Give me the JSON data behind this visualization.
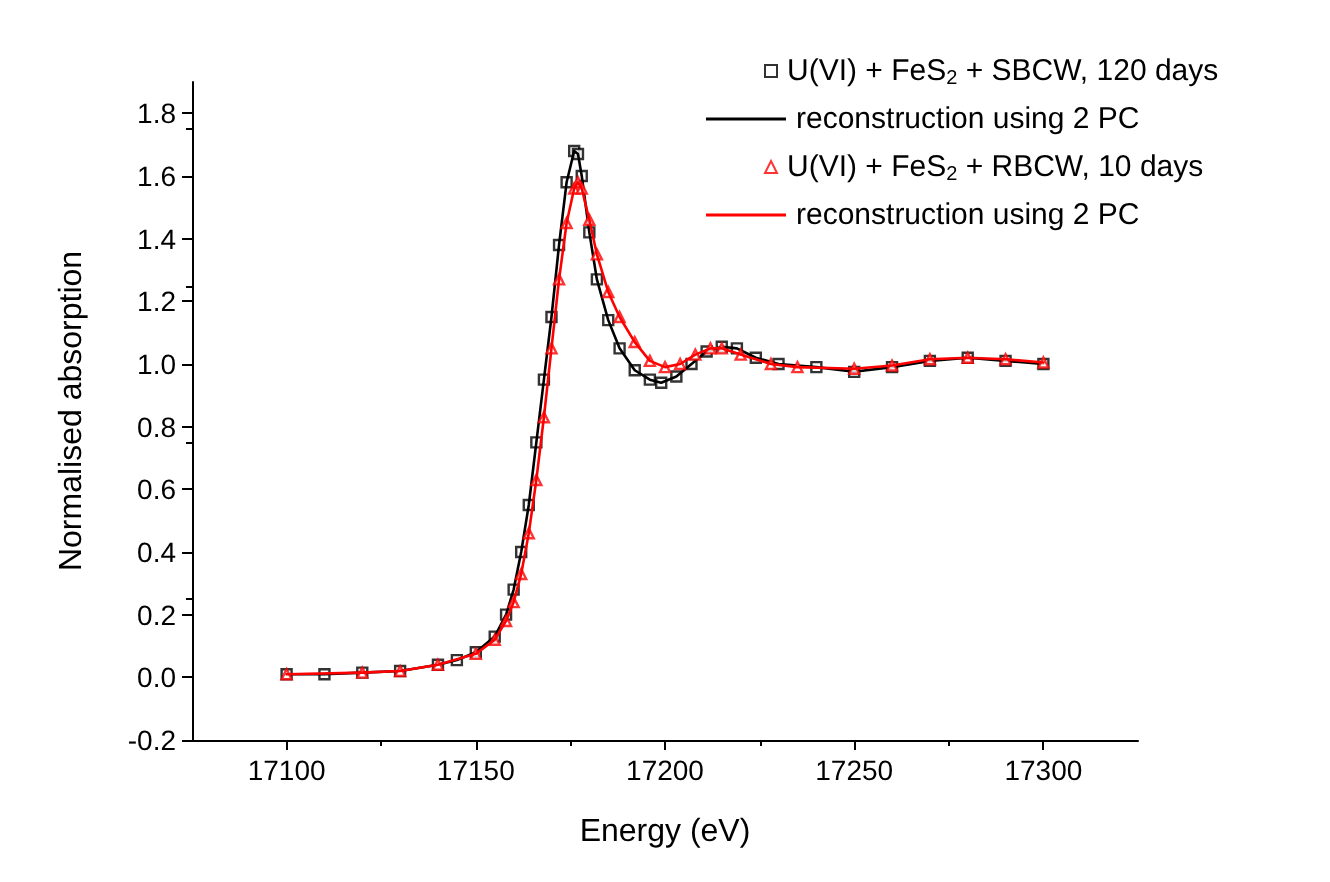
{
  "chart_data": {
    "type": "line",
    "xlabel": "Energy (eV)",
    "ylabel": "Normalised absorption",
    "xlim": [
      17075,
      17325
    ],
    "xticks": [
      17100,
      17150,
      17200,
      17250,
      17300
    ],
    "ylim": [
      -0.2,
      1.9
    ],
    "yticks": [
      {
        "value": -0.2,
        "label": "-0.2"
      },
      {
        "value": 0,
        "label": "0.0"
      },
      {
        "value": 0.2,
        "label": "0.2"
      },
      {
        "value": 0.4,
        "label": "0.4"
      },
      {
        "value": 0.6,
        "label": "0.6"
      },
      {
        "value": 0.8,
        "label": "0.8"
      },
      {
        "value": 1,
        "label": "1.0"
      },
      {
        "value": 1.2,
        "label": "1.2"
      },
      {
        "value": 1.4,
        "label": "1.4"
      },
      {
        "value": 1.6,
        "label": "1.6"
      },
      {
        "value": 1.8,
        "label": "1.8"
      }
    ],
    "grid": false,
    "legend": "top right",
    "series": [
      {
        "name": "U(VI) + FeS$_{2}$ + SBCW, 120 days",
        "type": "scatter",
        "marker": "square",
        "color": "#000000",
        "x": [
          17100,
          17110,
          17120,
          17130,
          17140,
          17145,
          17150,
          17155,
          17158,
          17160,
          17162,
          17164,
          17166,
          17168,
          17170,
          17172,
          17174,
          17176,
          17177,
          17178,
          17180,
          17182,
          17185,
          17188,
          17192,
          17196,
          17199,
          17203,
          17207,
          17211,
          17215,
          17219,
          17224,
          17230,
          17240,
          17250,
          17260,
          17270,
          17280,
          17290,
          17300
        ],
        "values": [
          0.01,
          0.01,
          0.015,
          0.02,
          0.04,
          0.055,
          0.08,
          0.13,
          0.2,
          0.28,
          0.4,
          0.55,
          0.75,
          0.95,
          1.15,
          1.38,
          1.58,
          1.68,
          1.67,
          1.6,
          1.42,
          1.27,
          1.14,
          1.05,
          0.98,
          0.95,
          0.94,
          0.96,
          1.0,
          1.04,
          1.055,
          1.05,
          1.02,
          1.0,
          0.99,
          0.975,
          0.99,
          1.01,
          1.02,
          1.01,
          1.0
        ]
      },
      {
        "name": "reconstruction using 2 PC",
        "type": "line",
        "marker": "none",
        "line_style": "solid",
        "color": "#000000",
        "x": [
          17100,
          17110,
          17120,
          17130,
          17140,
          17145,
          17150,
          17155,
          17158,
          17160,
          17162,
          17164,
          17166,
          17168,
          17170,
          17172,
          17174,
          17176,
          17177,
          17178,
          17180,
          17182,
          17185,
          17188,
          17192,
          17196,
          17199,
          17203,
          17207,
          17211,
          17215,
          17219,
          17224,
          17230,
          17240,
          17250,
          17260,
          17270,
          17280,
          17290,
          17300
        ],
        "values": [
          0.01,
          0.01,
          0.015,
          0.02,
          0.04,
          0.055,
          0.08,
          0.13,
          0.2,
          0.28,
          0.4,
          0.55,
          0.75,
          0.95,
          1.15,
          1.38,
          1.58,
          1.68,
          1.67,
          1.6,
          1.42,
          1.27,
          1.14,
          1.05,
          0.98,
          0.95,
          0.94,
          0.96,
          1.0,
          1.04,
          1.055,
          1.05,
          1.02,
          1.0,
          0.99,
          0.975,
          0.99,
          1.01,
          1.02,
          1.01,
          1.0
        ]
      },
      {
        "name": "U(VI) + FeS$_{2}$ + RBCW, 10 days",
        "type": "scatter",
        "marker": "triangle",
        "color": "#ff0000",
        "x": [
          17100,
          17120,
          17130,
          17140,
          17150,
          17155,
          17158,
          17160,
          17162,
          17164,
          17166,
          17168,
          17170,
          17172,
          17174,
          17176,
          17177,
          17178,
          17180,
          17182,
          17185,
          17188,
          17192,
          17196,
          17200,
          17204,
          17208,
          17212,
          17215,
          17220,
          17228,
          17235,
          17250,
          17260,
          17270,
          17280,
          17290,
          17300
        ],
        "values": [
          0.01,
          0.015,
          0.02,
          0.04,
          0.075,
          0.12,
          0.18,
          0.24,
          0.33,
          0.46,
          0.63,
          0.83,
          1.05,
          1.27,
          1.45,
          1.56,
          1.58,
          1.56,
          1.46,
          1.35,
          1.23,
          1.15,
          1.07,
          1.01,
          0.99,
          1.0,
          1.03,
          1.05,
          1.05,
          1.03,
          1.0,
          0.99,
          0.985,
          0.995,
          1.015,
          1.02,
          1.015,
          1.005
        ]
      },
      {
        "name": "reconstruction using 2 PC",
        "type": "line",
        "marker": "none",
        "line_style": "solid",
        "color": "#ff0000",
        "x": [
          17100,
          17120,
          17130,
          17140,
          17150,
          17155,
          17158,
          17160,
          17162,
          17164,
          17166,
          17168,
          17170,
          17172,
          17174,
          17176,
          17177,
          17178,
          17180,
          17182,
          17185,
          17188,
          17192,
          17196,
          17200,
          17204,
          17208,
          17212,
          17215,
          17220,
          17228,
          17235,
          17250,
          17260,
          17270,
          17280,
          17290,
          17300
        ],
        "values": [
          0.01,
          0.015,
          0.02,
          0.04,
          0.075,
          0.12,
          0.18,
          0.24,
          0.33,
          0.46,
          0.63,
          0.83,
          1.05,
          1.27,
          1.45,
          1.56,
          1.58,
          1.56,
          1.46,
          1.35,
          1.23,
          1.15,
          1.07,
          1.01,
          0.99,
          1.0,
          1.03,
          1.05,
          1.05,
          1.03,
          1.0,
          0.99,
          0.985,
          0.995,
          1.015,
          1.02,
          1.015,
          1.005
        ]
      }
    ]
  }
}
